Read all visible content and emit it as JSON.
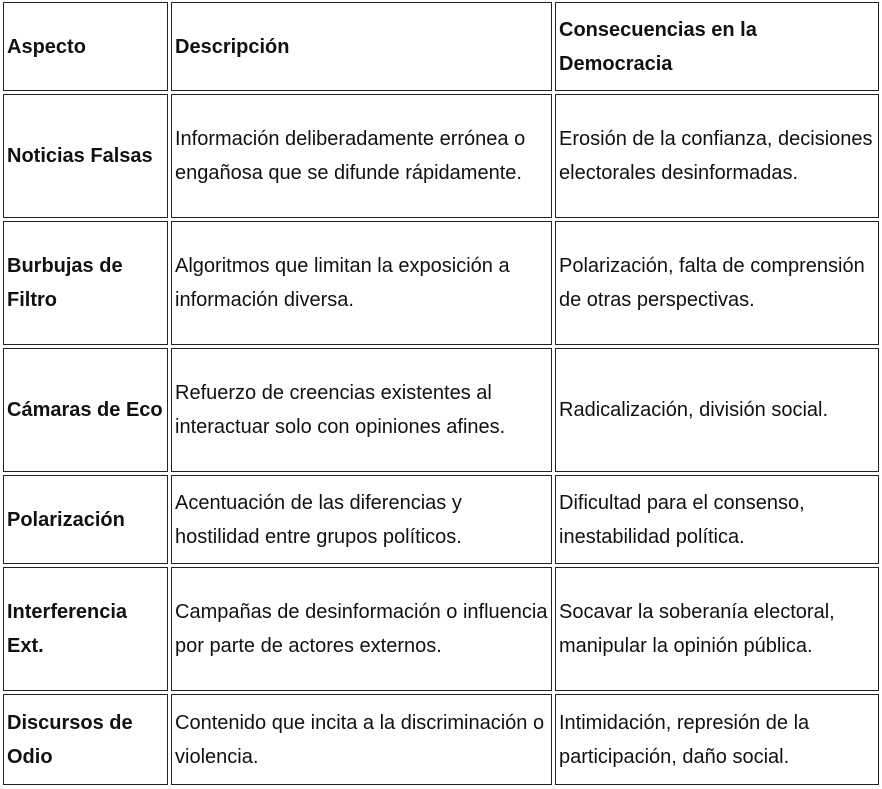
{
  "headers": [
    "Aspecto",
    "Descripción",
    "Consecuencias en la Democracia"
  ],
  "rows": [
    [
      "Noticias Falsas",
      "Información deliberadamente errónea o engañosa que se difunde rápidamente.",
      "Erosión de la confianza, decisiones electorales desinformadas."
    ],
    [
      "Burbujas de Filtro",
      "Algoritmos que limitan la exposición a información diversa.",
      "Polarización, falta de comprensión de otras perspectivas."
    ],
    [
      "Cámaras de Eco",
      "Refuerzo de creencias existentes al interactuar solo con opiniones afines.",
      "Radicalización, división social."
    ],
    [
      "Polarización",
      "Acentuación de las diferencias y hostilidad entre grupos políticos.",
      "Dificultad para el consenso, inestabilidad política."
    ],
    [
      "Interferencia Ext.",
      "Campañas de desinformación o influencia por parte de actores externos.",
      "Socavar la soberanía electoral, manipular la opinión pública."
    ],
    [
      "Discursos de Odio",
      "Contenido que incita a la discriminación o violencia.",
      "Intimidación, represión de la participación, daño social."
    ]
  ]
}
